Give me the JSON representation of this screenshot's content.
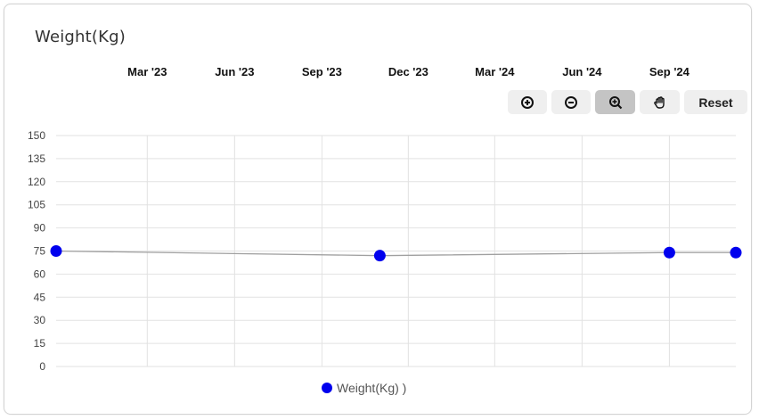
{
  "card": {
    "title": "Weight(Kg)"
  },
  "toolbar": {
    "zoom_in_icon": "circle-plus-icon",
    "zoom_out_icon": "circle-minus-icon",
    "selection_zoom_icon": "magnifier-plus-icon",
    "pan_icon": "hand-icon",
    "reset_label": "Reset"
  },
  "legend": {
    "label": "Weight(Kg) )"
  },
  "colors": {
    "series": "#0000ee",
    "line": "#a0a0a0",
    "grid": "#e2e2e2",
    "active_button": "#c4c4c4"
  },
  "chart_data": {
    "type": "line",
    "title": "Weight(Kg)",
    "x_ticks": [
      "Mar '23",
      "Jun '23",
      "Sep '23",
      "Dec '23",
      "Mar '24",
      "Jun '24",
      "Sep '24"
    ],
    "x_tick_dates": [
      "2023-03-01",
      "2023-06-01",
      "2023-09-01",
      "2023-12-01",
      "2024-03-01",
      "2024-06-01",
      "2024-09-01"
    ],
    "xlim": [
      "2022-11-25",
      "2024-11-10"
    ],
    "y_ticks": [
      0,
      15,
      30,
      45,
      60,
      75,
      90,
      105,
      120,
      135,
      150
    ],
    "ylim": [
      0,
      150
    ],
    "series": [
      {
        "name": "Weight(Kg) )",
        "x": [
          "2022-11-25",
          "2023-11-01",
          "2024-09-01",
          "2024-11-10"
        ],
        "y": [
          75,
          72,
          74,
          74
        ]
      }
    ],
    "x_axis_position": "top",
    "grid": true,
    "legend_position": "bottom-center"
  }
}
